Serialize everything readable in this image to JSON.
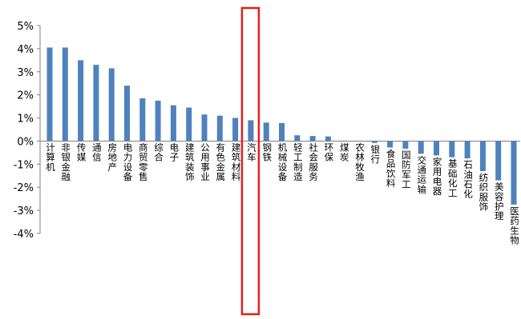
{
  "chart_data": {
    "type": "bar",
    "ylabel_ticks": [
      "5%",
      "4%",
      "3%",
      "2%",
      "1%",
      "0%",
      "-1%",
      "-2%",
      "-3%",
      "-4%"
    ],
    "ylim": [
      -4,
      5
    ],
    "grid": false,
    "legend": "none",
    "bar_color": "#4F81BD",
    "highlight_color": "#E41E1E",
    "highlight_category": "汽车",
    "categories": [
      "计算机",
      "非银金融",
      "传媒",
      "通信",
      "房地产",
      "电力设备",
      "商贸零售",
      "综合",
      "电子",
      "建筑装饰",
      "公用事业",
      "有色金属",
      "建筑材料",
      "汽车",
      "钢铁",
      "机械设备",
      "轻工制造",
      "社会服务",
      "环保",
      "煤炭",
      "农林牧渔",
      "银行",
      "食品饮料",
      "国防军工",
      "交通运输",
      "家用电器",
      "基础化工",
      "石油石化",
      "纺织服饰",
      "美容护理",
      "医药生物"
    ],
    "values": [
      4.05,
      4.05,
      3.5,
      3.3,
      3.15,
      2.4,
      1.85,
      1.75,
      1.55,
      1.45,
      1.15,
      1.1,
      1.0,
      0.9,
      0.8,
      0.78,
      0.25,
      0.22,
      0.2,
      0.02,
      0.0,
      -0.08,
      -0.28,
      -0.33,
      -0.55,
      -0.62,
      -0.7,
      -0.75,
      -1.3,
      -1.7,
      -2.75
    ]
  }
}
